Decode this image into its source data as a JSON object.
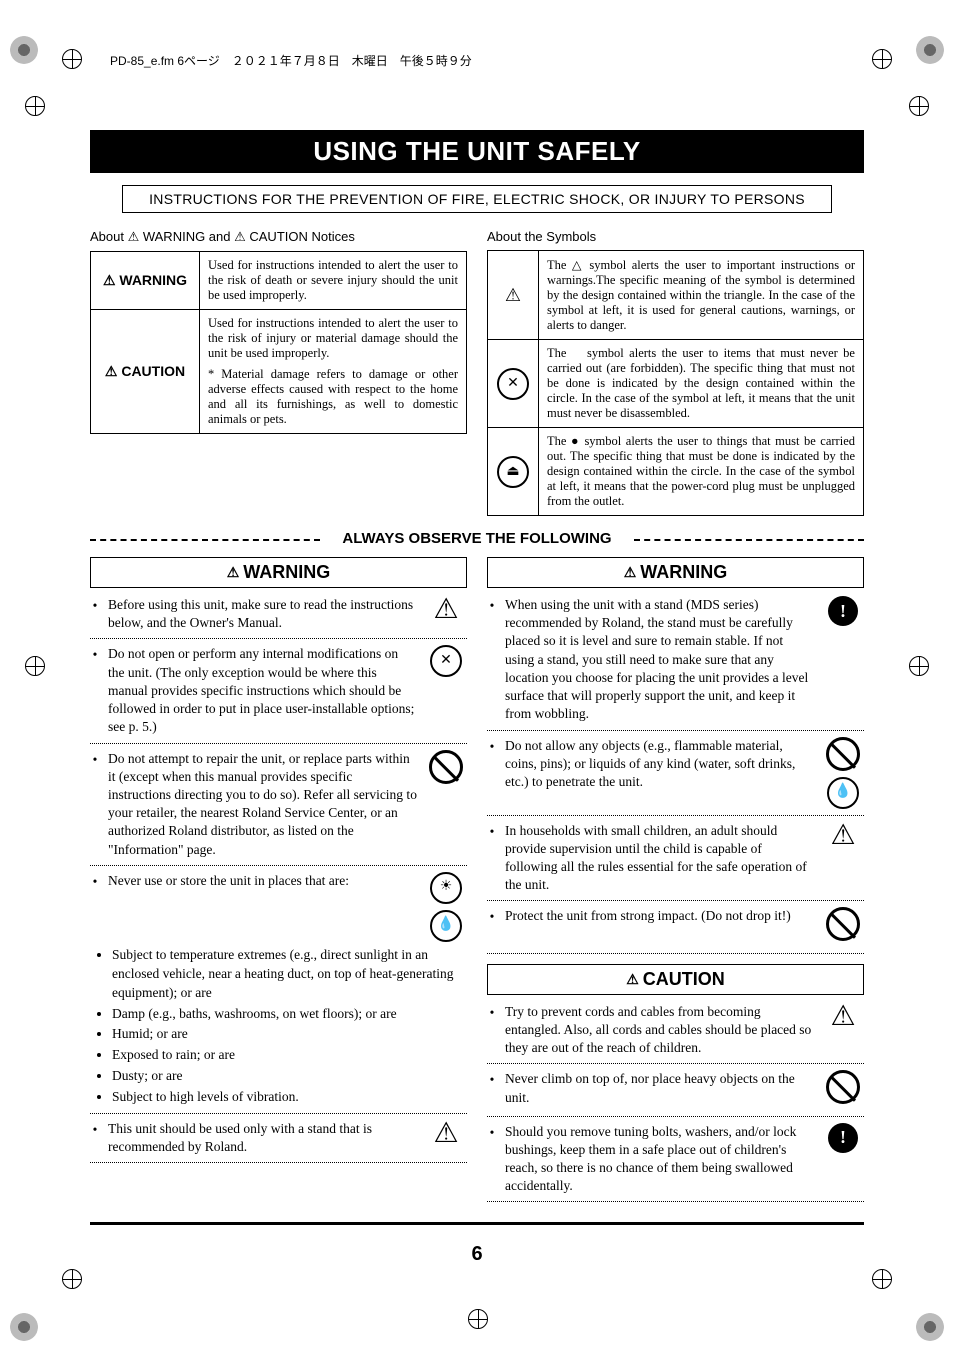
{
  "doc_header": "PD-85_e.fm 6ページ　２０２１年７月８日　木曜日　午後５時９分",
  "title": "USING THE UNIT SAFELY",
  "subtitle": "INSTRUCTIONS FOR THE PREVENTION OF FIRE, ELECTRIC SHOCK, OR INJURY TO PERSONS",
  "page_number": "6",
  "about_notices_heading": "About ⚠ WARNING and ⚠ CAUTION Notices",
  "about_symbols_heading": "About the Symbols",
  "notices": {
    "warning_label": "⚠ WARNING",
    "warning_text": "Used for instructions intended to alert the user to the risk of death or severe injury should the unit be used improperly.",
    "caution_label": "⚠ CAUTION",
    "caution_text_1": "Used for instructions intended to alert the user to the risk of injury or material damage should the unit be used improperly.",
    "caution_text_2": "* Material damage refers to damage or other adverse effects caused with respect to the home and all its furnishings, as well to domestic animals or pets."
  },
  "symbols": {
    "triangle": "The △ symbol alerts the user to important instructions or warnings.The specific meaning of the symbol is determined by the design contained within the triangle. In the case of the symbol at left, it is used for general cautions, warnings, or alerts to danger.",
    "prohibit": "The ⃠ symbol alerts the user to items that must never be carried out (are forbidden). The specific thing that must not be done is indicated by the design contained within the circle. In the case of the symbol at left, it means that the unit must never be disassembled.",
    "mandatory": "The ● symbol alerts the user to things that must be carried out. The specific thing that must be done is indicated by the design contained within the circle. In the case of the symbol at left, it means that the power-cord plug must be unplugged from the outlet."
  },
  "divider_label": "ALWAYS OBSERVE THE FOLLOWING",
  "warning_header": "WARNING",
  "caution_header": "CAUTION",
  "left_warnings": [
    {
      "text": "Before using this unit, make sure to read the instructions below, and the Owner's Manual.",
      "icon": "alert-triangle"
    },
    {
      "text": "Do not open or perform any internal modifications on the unit. (The only exception would be where this manual provides specific instructions which should be followed in order to put in place user-installable options; see p. 5.)",
      "icon": "no-disassemble"
    },
    {
      "text": "Do not attempt to repair the unit, or replace parts within it (except when this manual provides specific instructions directing you to do so). Refer all servicing to your retailer, the nearest Roland Service Center, or an authorized Roland distributor, as listed on the \"Information\" page.",
      "icon": "prohibit"
    },
    {
      "text": "Never use or store the unit in places that are:",
      "icon": "no-sun-water",
      "subs": [
        "Subject to temperature extremes (e.g., direct sunlight in an enclosed vehicle, near a heating duct, on top of heat-generating equipment); or are",
        "Damp (e.g., baths, washrooms, on wet floors); or are",
        "Humid; or are",
        "Exposed to rain; or are",
        "Dusty; or are",
        "Subject to high levels of vibration."
      ]
    },
    {
      "text": "This unit should be used only with a stand that is recommended by Roland.",
      "icon": "alert-triangle"
    }
  ],
  "right_warnings": [
    {
      "text": "When using the unit with a stand (MDS series) recommended by Roland, the stand must be carefully placed so it is level and sure to remain stable. If not using a stand, you still need to make sure that any location you choose for placing the unit provides a level surface that will properly support the unit, and keep it from wobbling.",
      "icon": "filled-circle"
    },
    {
      "text": "Do not allow any objects (e.g., flammable material, coins, pins); or liquids of any kind (water, soft drinks, etc.) to penetrate the unit.",
      "icon": "prohibit-stack"
    },
    {
      "text": "In households with small children, an adult should provide supervision until the child is capable of following all the rules essential for the safe operation of the unit.",
      "icon": "alert-triangle"
    },
    {
      "text": "Protect the unit from strong impact.\n(Do not drop it!)",
      "icon": "prohibit"
    }
  ],
  "cautions": [
    {
      "text": "Try to prevent cords and cables from becoming entangled. Also, all cords and cables should be placed so they are out of the reach of children.",
      "icon": "alert-triangle"
    },
    {
      "text": "Never climb on top of, nor place heavy objects on the unit.",
      "icon": "prohibit"
    },
    {
      "text": "Should you remove tuning bolts, washers, and/or lock bushings, keep them in a safe place out of children's reach, so there is no chance of them being swallowed accidentally.",
      "icon": "filled-circle"
    }
  ]
}
